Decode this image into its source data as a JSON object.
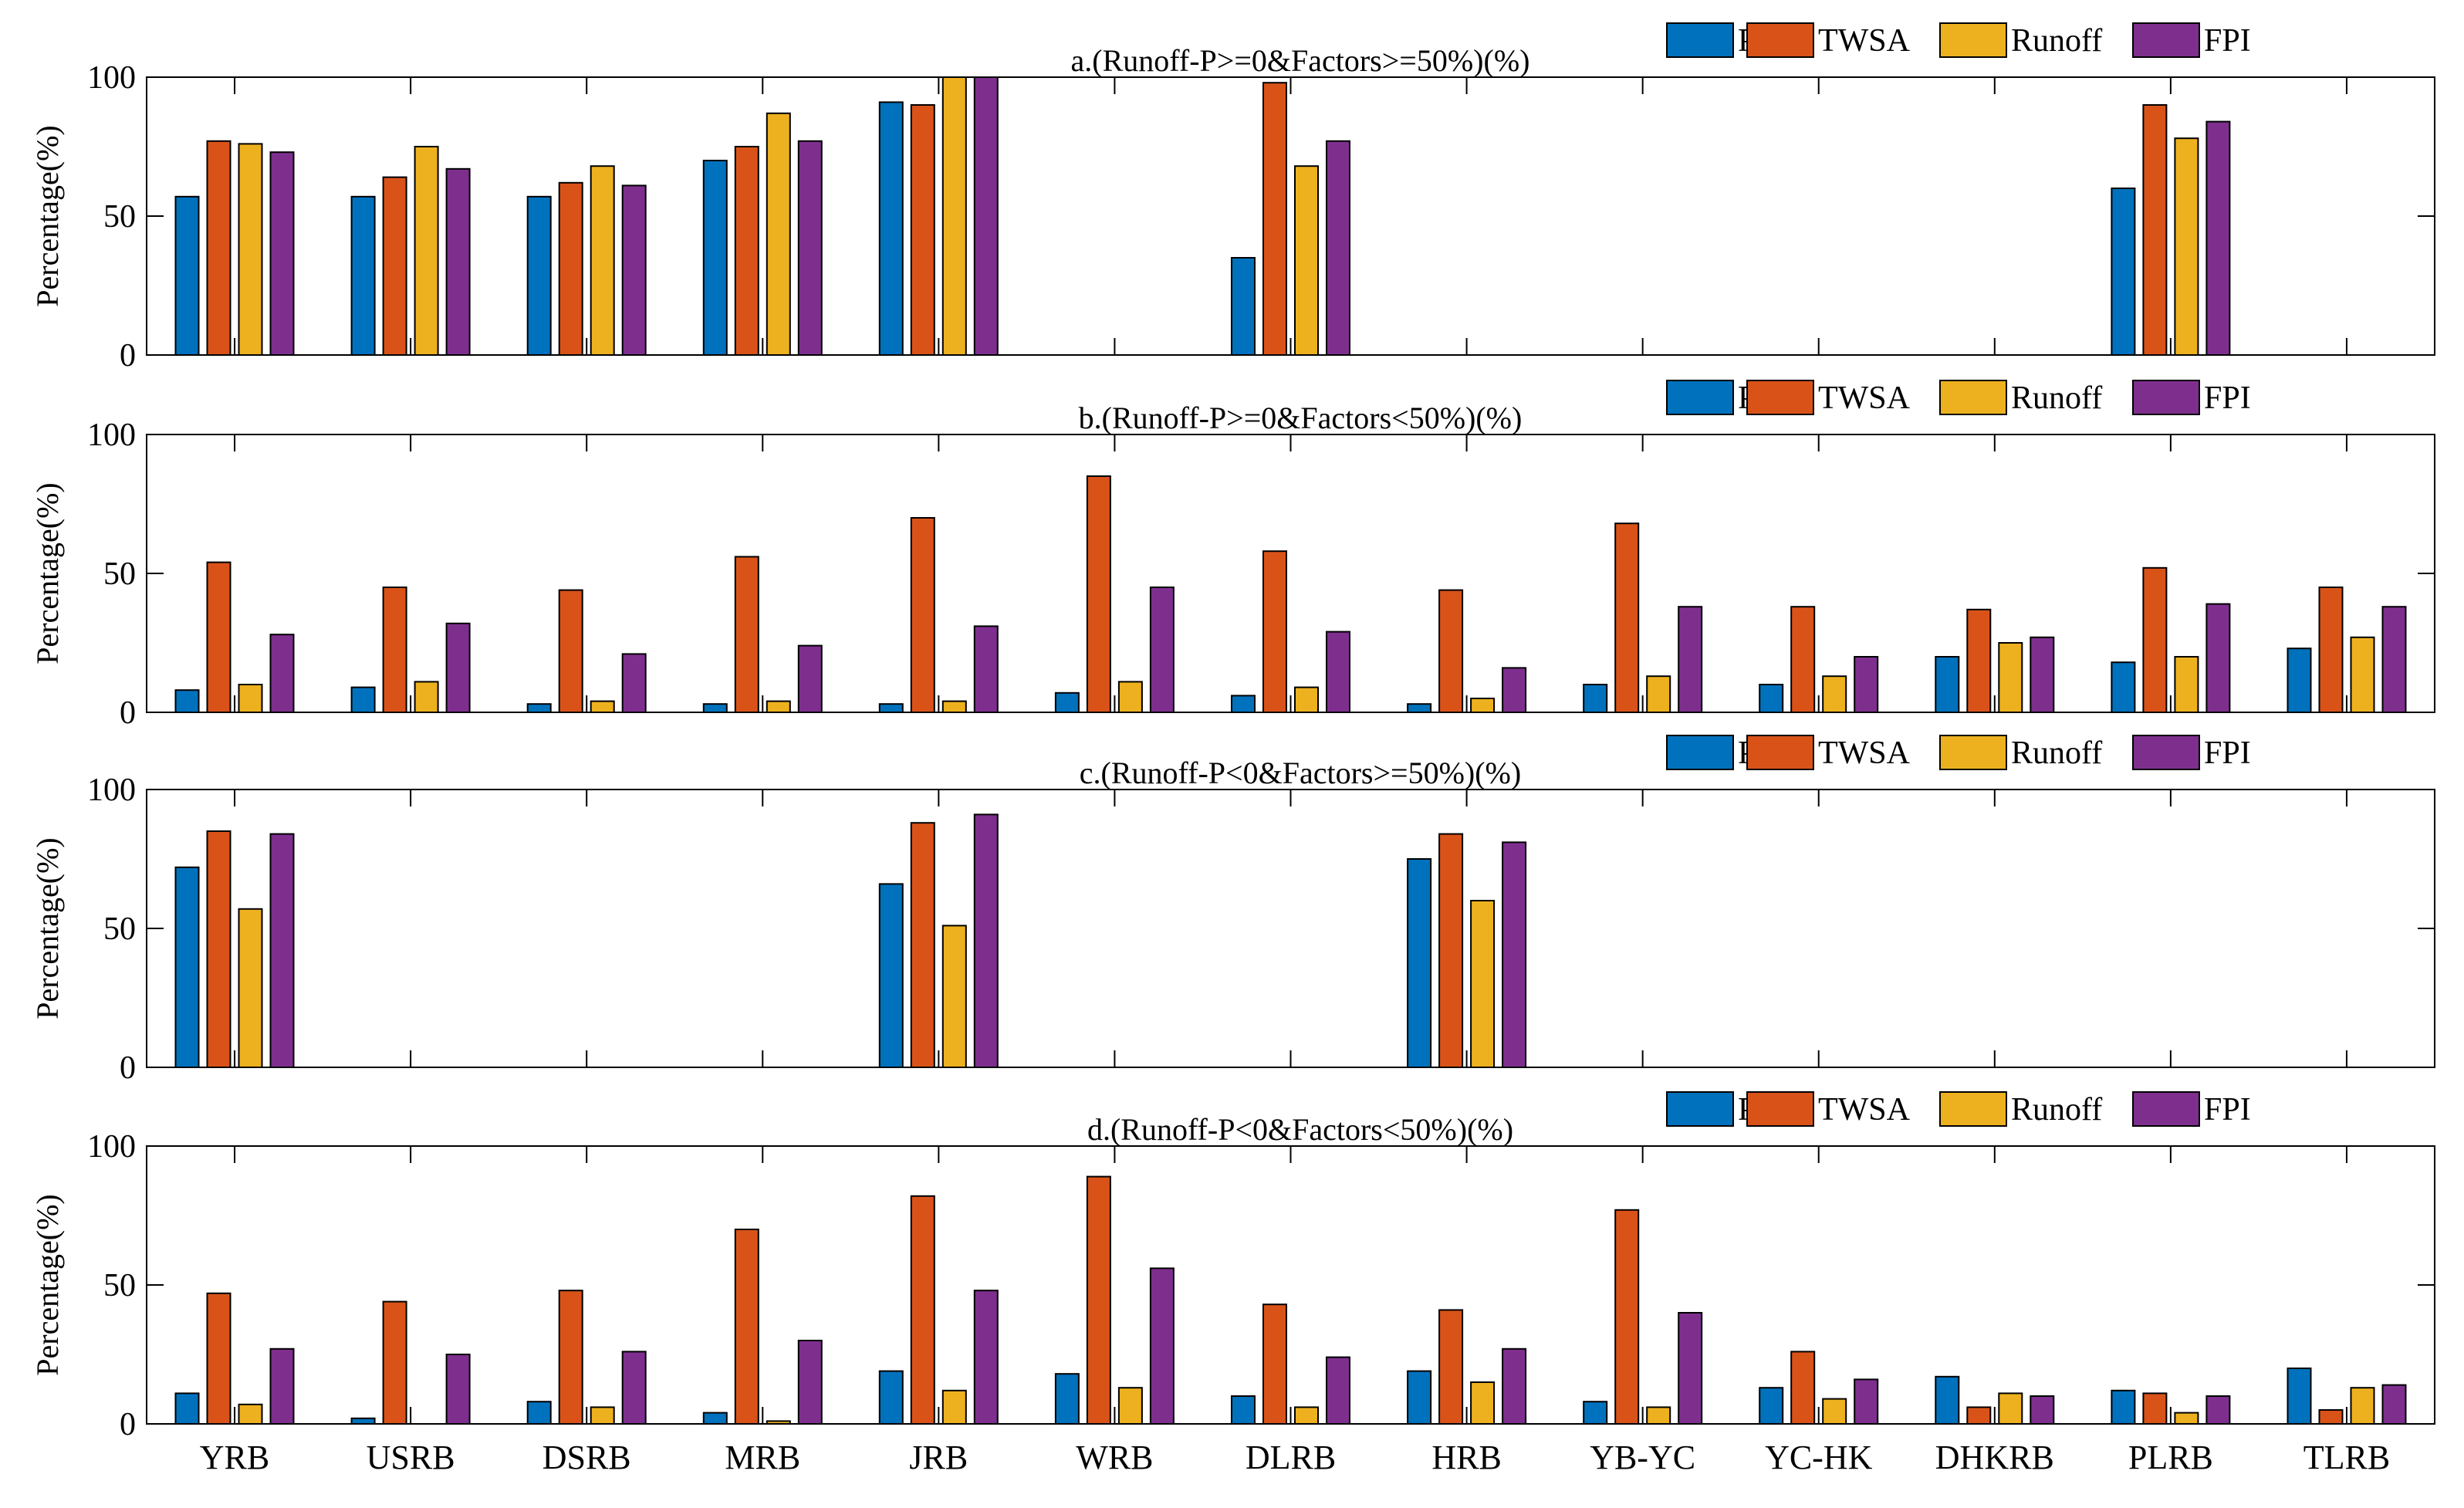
{
  "colors": {
    "P": "#0072BD",
    "TWSA": "#D95319",
    "Runoff": "#EDB120",
    "FPI": "#7E2F8E"
  },
  "chart_data": {
    "type": "bar",
    "categories": [
      "YRB",
      "USRB",
      "DSRB",
      "MRB",
      "JRB",
      "WRB",
      "DLRB",
      "HRB",
      "YB-YC",
      "YC-HK",
      "DHKRB",
      "PLRB",
      "TLRB"
    ],
    "series_names": [
      "P",
      "TWSA",
      "Runoff",
      "FPI"
    ],
    "ylabel": "Percentage(%)",
    "ylim": [
      0,
      100
    ],
    "yticks": [
      0,
      50,
      100
    ],
    "legend_position": "top-right",
    "panels": [
      {
        "title": "a.(Runoff-P>=0&Factors>=50%)(%)",
        "series": [
          {
            "name": "P",
            "values": [
              57,
              57,
              57,
              70,
              91,
              null,
              35,
              null,
              null,
              null,
              null,
              60,
              null
            ]
          },
          {
            "name": "TWSA",
            "values": [
              77,
              64,
              62,
              75,
              90,
              null,
              98,
              null,
              null,
              null,
              null,
              90,
              null
            ]
          },
          {
            "name": "Runoff",
            "values": [
              76,
              75,
              68,
              87,
              100,
              null,
              68,
              null,
              null,
              null,
              null,
              78,
              null
            ]
          },
          {
            "name": "FPI",
            "values": [
              73,
              67,
              61,
              77,
              100,
              null,
              77,
              null,
              null,
              null,
              null,
              84,
              null
            ]
          }
        ]
      },
      {
        "title": "b.(Runoff-P>=0&Factors<50%)(%)",
        "series": [
          {
            "name": "P",
            "values": [
              8,
              9,
              3,
              3,
              3,
              7,
              6,
              3,
              10,
              10,
              20,
              18,
              23
            ]
          },
          {
            "name": "TWSA",
            "values": [
              54,
              45,
              44,
              56,
              70,
              85,
              58,
              44,
              68,
              38,
              37,
              52,
              45
            ]
          },
          {
            "name": "Runoff",
            "values": [
              10,
              11,
              4,
              4,
              4,
              11,
              9,
              5,
              13,
              13,
              25,
              20,
              27
            ]
          },
          {
            "name": "FPI",
            "values": [
              28,
              32,
              21,
              24,
              31,
              45,
              29,
              16,
              38,
              20,
              27,
              39,
              38
            ]
          }
        ]
      },
      {
        "title": "c.(Runoff-P<0&Factors>=50%)(%)",
        "series": [
          {
            "name": "P",
            "values": [
              72,
              null,
              null,
              null,
              66,
              null,
              null,
              75,
              null,
              null,
              null,
              null,
              null
            ]
          },
          {
            "name": "TWSA",
            "values": [
              85,
              null,
              null,
              null,
              88,
              null,
              null,
              84,
              null,
              null,
              null,
              null,
              null
            ]
          },
          {
            "name": "Runoff",
            "values": [
              57,
              null,
              null,
              null,
              51,
              null,
              null,
              60,
              null,
              null,
              null,
              null,
              null
            ]
          },
          {
            "name": "FPI",
            "values": [
              84,
              null,
              null,
              null,
              91,
              null,
              null,
              81,
              null,
              null,
              null,
              null,
              null
            ]
          }
        ]
      },
      {
        "title": "d.(Runoff-P<0&Factors<50%)(%)",
        "series": [
          {
            "name": "P",
            "values": [
              11,
              2,
              8,
              4,
              19,
              18,
              10,
              19,
              8,
              13,
              17,
              12,
              20
            ]
          },
          {
            "name": "TWSA",
            "values": [
              47,
              44,
              48,
              70,
              82,
              89,
              43,
              41,
              77,
              26,
              6,
              11,
              5
            ]
          },
          {
            "name": "Runoff",
            "values": [
              7,
              0,
              6,
              1,
              12,
              13,
              6,
              15,
              6,
              9,
              11,
              4,
              13
            ]
          },
          {
            "name": "FPI",
            "values": [
              27,
              25,
              26,
              30,
              48,
              56,
              24,
              27,
              40,
              16,
              10,
              10,
              14
            ]
          }
        ]
      }
    ]
  }
}
